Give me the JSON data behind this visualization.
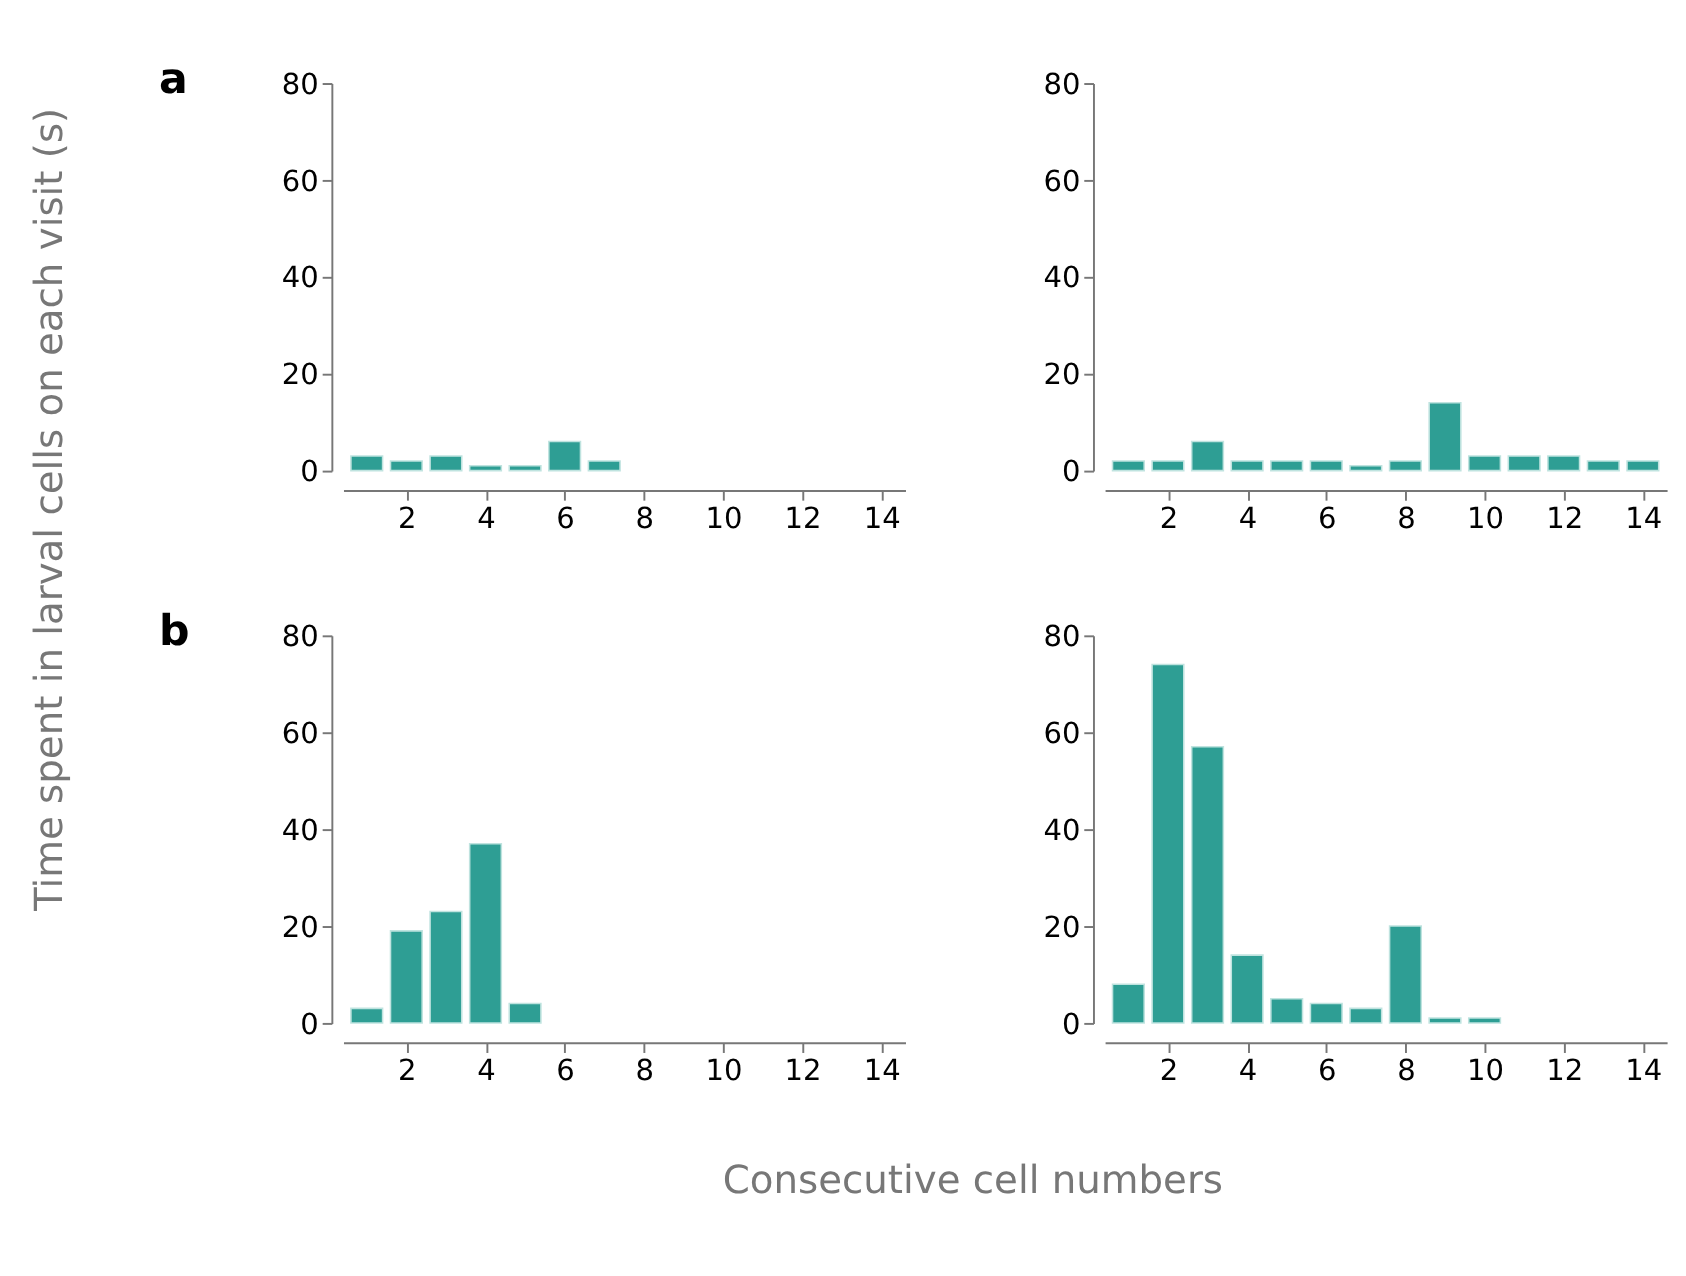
{
  "chart_data": [
    {
      "type": "bar",
      "annotations": [
        "a"
      ],
      "ylabel": "Time spent in larval cells on each visit (s)",
      "x": [
        1,
        2,
        3,
        4,
        5,
        6,
        7
      ],
      "values": [
        3,
        2,
        3,
        1,
        1,
        6,
        2
      ],
      "color": "#2e9e94",
      "xlim": [
        0.4,
        14.6
      ],
      "xticks": [
        2,
        4,
        6,
        8,
        10,
        12,
        14
      ],
      "ylim": [
        0,
        80
      ],
      "yticks": [
        0,
        20,
        40,
        60,
        80
      ],
      "grid": false
    },
    {
      "type": "bar",
      "x": [
        1,
        2,
        3,
        4,
        5,
        6,
        7,
        8,
        9,
        10,
        11,
        12,
        13,
        14
      ],
      "values": [
        2,
        2,
        6,
        2,
        2,
        2,
        1,
        2,
        14,
        3,
        3,
        3,
        2,
        2
      ],
      "color": "#2e9e94",
      "xlim": [
        0.4,
        14.6
      ],
      "xticks": [
        2,
        4,
        6,
        8,
        10,
        12,
        14
      ],
      "ylim": [
        0,
        80
      ],
      "yticks": [
        0,
        20,
        40,
        60,
        80
      ],
      "grid": false
    },
    {
      "type": "bar",
      "annotations": [
        "b"
      ],
      "x": [
        1,
        2,
        3,
        4,
        5
      ],
      "values": [
        3,
        19,
        23,
        37,
        4
      ],
      "color": "#2e9e94",
      "xlim": [
        0.4,
        14.6
      ],
      "xticks": [
        2,
        4,
        6,
        8,
        10,
        12,
        14
      ],
      "ylim": [
        0,
        80
      ],
      "yticks": [
        0,
        20,
        40,
        60,
        80
      ],
      "grid": false
    },
    {
      "type": "bar",
      "xlabel": "Consecutive cell numbers",
      "x": [
        1,
        2,
        3,
        4,
        5,
        6,
        7,
        8,
        9,
        10
      ],
      "values": [
        8,
        74,
        57,
        14,
        5,
        4,
        3,
        20,
        1,
        1
      ],
      "color": "#2e9e94",
      "xlim": [
        0.4,
        14.6
      ],
      "xticks": [
        2,
        4,
        6,
        8,
        10,
        12,
        14
      ],
      "ylim": [
        0,
        80
      ],
      "yticks": [
        0,
        20,
        40,
        60,
        80
      ],
      "grid": false
    }
  ]
}
